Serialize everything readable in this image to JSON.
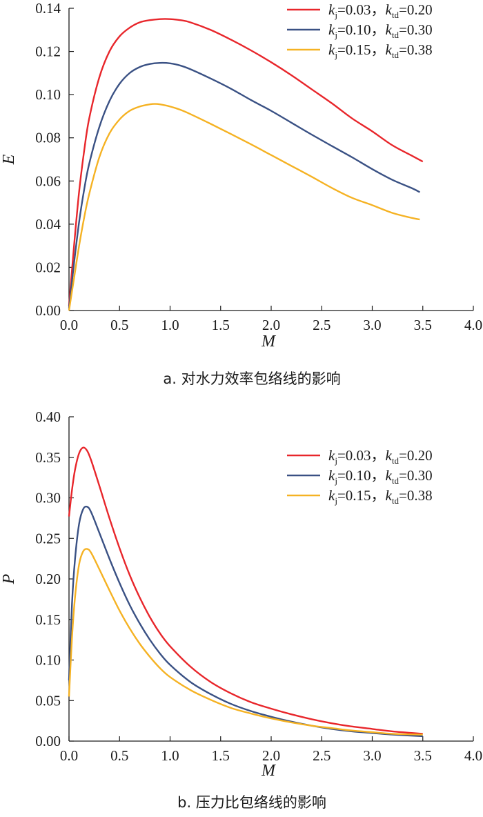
{
  "chart_data": [
    {
      "type": "line",
      "caption": "a. 对水力效率包络线的影响",
      "xlabel": "M",
      "ylabel": "E",
      "xlim": [
        0,
        4.0
      ],
      "ylim": [
        0,
        0.14
      ],
      "xticks": [
        "0.0",
        "0.5",
        "1.0",
        "1.5",
        "2.0",
        "2.5",
        "3.0",
        "3.5",
        "4.0"
      ],
      "yticks": [
        "0.00",
        "0.02",
        "0.04",
        "0.06",
        "0.08",
        "0.10",
        "0.12",
        "0.14"
      ],
      "legend_position": "top-right",
      "series": [
        {
          "name": "kj=0.03，ktd=0.20",
          "legend": {
            "k1": "k",
            "s1": "j",
            "t1": "=0.03，",
            "k2": "k",
            "s2": "td",
            "t2": "=0.20"
          },
          "color": "#e8262b",
          "x": [
            0,
            0.05,
            0.1,
            0.15,
            0.2,
            0.3,
            0.4,
            0.5,
            0.6,
            0.7,
            0.8,
            0.9,
            1.0,
            1.1,
            1.2,
            1.4,
            1.6,
            1.8,
            2.0,
            2.2,
            2.4,
            2.6,
            2.8,
            3.0,
            3.2,
            3.4,
            3.5
          ],
          "y": [
            0.002,
            0.03,
            0.055,
            0.074,
            0.089,
            0.108,
            0.12,
            0.127,
            0.131,
            0.1335,
            0.1345,
            0.135,
            0.135,
            0.1345,
            0.1335,
            0.13,
            0.1255,
            0.1205,
            0.115,
            0.109,
            0.1025,
            0.096,
            0.089,
            0.083,
            0.0765,
            0.0715,
            0.069
          ]
        },
        {
          "name": "kj=0.10，ktd=0.30",
          "legend": {
            "k1": "k",
            "s1": "j",
            "t1": "=0.10，",
            "k2": "k",
            "s2": "td",
            "t2": "=0.30"
          },
          "color": "#3a5184",
          "x": [
            0,
            0.05,
            0.1,
            0.15,
            0.2,
            0.3,
            0.4,
            0.5,
            0.6,
            0.7,
            0.8,
            0.9,
            1.0,
            1.1,
            1.2,
            1.4,
            1.6,
            1.8,
            2.0,
            2.2,
            2.4,
            2.6,
            2.8,
            3.0,
            3.2,
            3.4,
            3.47
          ],
          "y": [
            0.001,
            0.022,
            0.041,
            0.056,
            0.068,
            0.085,
            0.097,
            0.105,
            0.11,
            0.1128,
            0.1142,
            0.1147,
            0.1145,
            0.1135,
            0.1118,
            0.1075,
            0.1028,
            0.0975,
            0.0925,
            0.087,
            0.0815,
            0.0762,
            0.071,
            0.0655,
            0.0605,
            0.0565,
            0.0548
          ]
        },
        {
          "name": "kj=0.15，ktd=0.38",
          "legend": {
            "k1": "k",
            "s1": "j",
            "t1": "=0.15，",
            "k2": "k",
            "s2": "td",
            "t2": "=0.38"
          },
          "color": "#f5b223",
          "x": [
            0,
            0.05,
            0.1,
            0.15,
            0.2,
            0.3,
            0.4,
            0.5,
            0.6,
            0.7,
            0.8,
            0.85,
            0.9,
            1.0,
            1.1,
            1.2,
            1.4,
            1.6,
            1.8,
            2.0,
            2.2,
            2.4,
            2.6,
            2.8,
            3.0,
            3.2,
            3.4,
            3.47
          ],
          "y": [
            0.0,
            0.015,
            0.03,
            0.043,
            0.054,
            0.071,
            0.082,
            0.0885,
            0.0925,
            0.0945,
            0.0955,
            0.0957,
            0.0955,
            0.0945,
            0.093,
            0.091,
            0.0865,
            0.0818,
            0.077,
            0.072,
            0.067,
            0.062,
            0.0568,
            0.0522,
            0.0488,
            0.0452,
            0.0428,
            0.0422
          ]
        }
      ]
    },
    {
      "type": "line",
      "caption": "b. 压力比包络线的影响",
      "xlabel": "M",
      "ylabel": "P",
      "xlim": [
        0,
        4.0
      ],
      "ylim": [
        0,
        0.4
      ],
      "xticks": [
        "0.0",
        "0.5",
        "1.0",
        "1.5",
        "2.0",
        "2.5",
        "3.0",
        "3.5",
        "4.0"
      ],
      "yticks": [
        "0.00",
        "0.05",
        "0.10",
        "0.15",
        "0.20",
        "0.25",
        "0.30",
        "0.35",
        "0.40"
      ],
      "legend_position": "top-right",
      "series": [
        {
          "name": "kj=0.03，ktd=0.20",
          "legend": {
            "k1": "k",
            "s1": "j",
            "t1": "=0.03，",
            "k2": "k",
            "s2": "td",
            "t2": "=0.20"
          },
          "color": "#e8262b",
          "x": [
            0.0,
            0.03,
            0.06,
            0.1,
            0.14,
            0.18,
            0.22,
            0.3,
            0.4,
            0.5,
            0.6,
            0.7,
            0.8,
            0.9,
            1.0,
            1.2,
            1.4,
            1.6,
            1.8,
            2.0,
            2.2,
            2.4,
            2.6,
            2.8,
            3.0,
            3.2,
            3.5
          ],
          "y": [
            0.277,
            0.31,
            0.335,
            0.355,
            0.362,
            0.358,
            0.346,
            0.315,
            0.275,
            0.238,
            0.205,
            0.177,
            0.153,
            0.133,
            0.117,
            0.092,
            0.073,
            0.059,
            0.048,
            0.04,
            0.033,
            0.027,
            0.022,
            0.018,
            0.015,
            0.012,
            0.009
          ]
        },
        {
          "name": "kj=0.10，ktd=0.30",
          "legend": {
            "k1": "k",
            "s1": "j",
            "t1": "=0.10，",
            "k2": "k",
            "s2": "td",
            "t2": "=0.30"
          },
          "color": "#3a5184",
          "x": [
            0.0,
            0.03,
            0.06,
            0.1,
            0.14,
            0.18,
            0.22,
            0.3,
            0.4,
            0.5,
            0.6,
            0.7,
            0.8,
            0.9,
            1.0,
            1.2,
            1.4,
            1.6,
            1.8,
            2.0,
            2.2,
            2.4,
            2.6,
            2.8,
            3.0,
            3.2,
            3.5
          ],
          "y": [
            0.075,
            0.17,
            0.225,
            0.268,
            0.286,
            0.289,
            0.282,
            0.257,
            0.225,
            0.195,
            0.168,
            0.145,
            0.125,
            0.108,
            0.094,
            0.073,
            0.058,
            0.046,
            0.037,
            0.03,
            0.024,
            0.019,
            0.015,
            0.012,
            0.01,
            0.008,
            0.006
          ]
        },
        {
          "name": "kj=0.15，ktd=0.38",
          "legend": {
            "k1": "k",
            "s1": "j",
            "t1": "=0.15，",
            "k2": "k",
            "s2": "td",
            "t2": "=0.38"
          },
          "color": "#f5b223",
          "x": [
            0.0,
            0.03,
            0.06,
            0.1,
            0.14,
            0.18,
            0.22,
            0.3,
            0.4,
            0.5,
            0.6,
            0.7,
            0.8,
            0.9,
            1.0,
            1.2,
            1.4,
            1.6,
            1.8,
            2.0,
            2.2,
            2.4,
            2.6,
            2.8,
            3.0,
            3.2,
            3.5
          ],
          "y": [
            0.055,
            0.128,
            0.178,
            0.218,
            0.234,
            0.237,
            0.232,
            0.212,
            0.186,
            0.161,
            0.139,
            0.12,
            0.104,
            0.09,
            0.079,
            0.063,
            0.051,
            0.041,
            0.034,
            0.028,
            0.023,
            0.019,
            0.016,
            0.013,
            0.011,
            0.009,
            0.008
          ]
        }
      ]
    }
  ]
}
